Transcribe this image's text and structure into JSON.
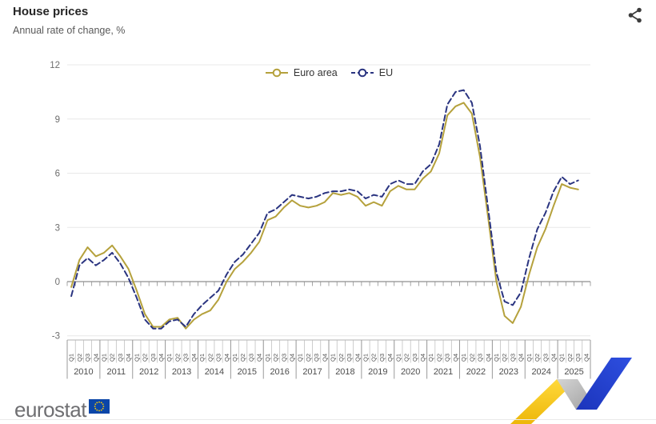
{
  "header": {
    "title": "House prices",
    "subtitle": "Annual rate of change, %"
  },
  "toolbar": {
    "share_icon": "share-icon"
  },
  "legend": {
    "position": "top-center",
    "items": [
      {
        "label": "Euro area",
        "color": "#b5a13c",
        "line_style": "solid",
        "marker": "open-circle"
      },
      {
        "label": "EU",
        "color": "#2a3480",
        "line_style": "dashed",
        "marker": "open-circle"
      }
    ]
  },
  "chart_data": {
    "type": "line",
    "title": "House prices",
    "subtitle": "Annual rate of change, %",
    "xlabel": "",
    "ylabel": "",
    "ylim": [
      -3,
      12
    ],
    "yticks": [
      12,
      9,
      6,
      3,
      0,
      -3
    ],
    "grid": true,
    "zero_axis": true,
    "legend_position": "top-center",
    "x_axis": {
      "years": [
        "2010",
        "2011",
        "2012",
        "2013",
        "2014",
        "2015",
        "2016",
        "2017",
        "2018",
        "2019",
        "2020",
        "2021",
        "2022",
        "2023",
        "2024",
        "2025"
      ],
      "quarters": [
        "Q1",
        "Q2",
        "Q3",
        "Q4"
      ],
      "first_data_quarter": "2010-Q1",
      "last_data_quarter": "2025-Q3",
      "last_axis_quarter": "2025-Q4"
    },
    "series": [
      {
        "name": "Euro area",
        "color": "#b5a13c",
        "dash": "solid",
        "values": [
          -0.3,
          1.2,
          1.9,
          1.4,
          1.6,
          2.0,
          1.4,
          0.7,
          -0.5,
          -1.8,
          -2.5,
          -2.5,
          -2.1,
          -2.0,
          -2.6,
          -2.1,
          -1.8,
          -1.6,
          -1.0,
          0.0,
          0.7,
          1.1,
          1.6,
          2.2,
          3.4,
          3.6,
          4.1,
          4.5,
          4.2,
          4.1,
          4.2,
          4.4,
          4.9,
          4.8,
          4.9,
          4.7,
          4.2,
          4.4,
          4.2,
          5.0,
          5.3,
          5.1,
          5.1,
          5.7,
          6.1,
          7.1,
          9.2,
          9.7,
          9.9,
          9.3,
          6.9,
          3.5,
          0.0,
          -1.9,
          -2.3,
          -1.4,
          0.4,
          1.9,
          2.9,
          4.2,
          5.4,
          5.2,
          5.1
        ]
      },
      {
        "name": "EU",
        "color": "#2a3480",
        "dash": "dashed",
        "values": [
          -0.8,
          0.9,
          1.3,
          0.9,
          1.2,
          1.6,
          1.0,
          0.2,
          -0.9,
          -2.1,
          -2.6,
          -2.6,
          -2.2,
          -2.1,
          -2.5,
          -1.8,
          -1.3,
          -0.9,
          -0.5,
          0.4,
          1.1,
          1.5,
          2.1,
          2.7,
          3.8,
          4.0,
          4.4,
          4.8,
          4.7,
          4.6,
          4.7,
          4.9,
          5.0,
          5.0,
          5.1,
          5.0,
          4.6,
          4.8,
          4.7,
          5.4,
          5.6,
          5.4,
          5.4,
          6.1,
          6.5,
          7.6,
          9.8,
          10.5,
          10.6,
          9.9,
          7.5,
          4.0,
          0.5,
          -1.1,
          -1.3,
          -0.6,
          1.3,
          2.9,
          3.8,
          5.0,
          5.8,
          5.4,
          5.6
        ]
      }
    ]
  },
  "branding": {
    "logo_text": "eurostat",
    "flag_blue": "#0b46a8",
    "star_yellow": "#ffcc00",
    "ribbon_colors": {
      "yellow": "#f2bf14",
      "gray": "#b9b9b9",
      "blue": "#2643cd"
    }
  }
}
